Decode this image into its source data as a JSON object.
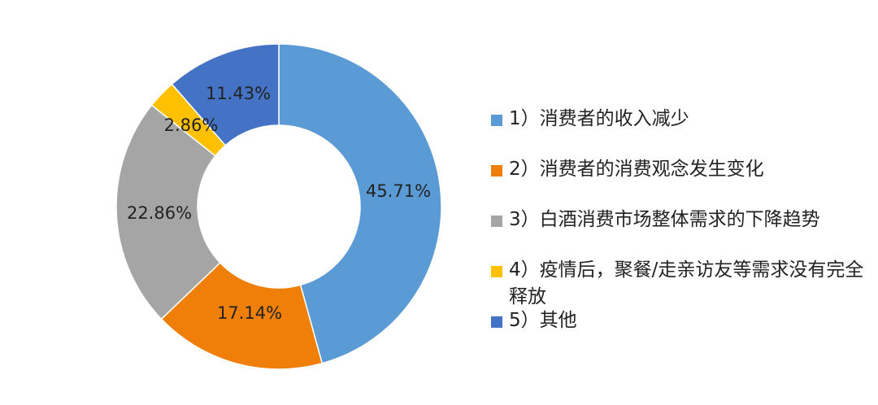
{
  "chart_data": {
    "type": "pie",
    "variant": "donut",
    "title": "",
    "slices": [
      {
        "label": "1）消费者的收入减少",
        "value": 45.71,
        "value_label": "45.71%",
        "color": "#5b9bd5"
      },
      {
        "label": "2）消费者的消费观念发生变化",
        "value": 17.14,
        "value_label": "17.14%",
        "color": "#f07f09"
      },
      {
        "label": "3）白酒消费市场整体需求的下降趋势",
        "value": 22.86,
        "value_label": "22.86%",
        "color": "#a5a5a5"
      },
      {
        "label": "4）疫情后，聚餐/走亲访友等需求没有完全释放",
        "value": 2.86,
        "value_label": "2.86%",
        "color": "#ffc000"
      },
      {
        "label": "5）其他",
        "value": 11.43,
        "value_label": "11.43%",
        "color": "#4472c4"
      }
    ],
    "legend_position": "right",
    "start_angle": "12 o'clock",
    "direction": "clockwise"
  }
}
